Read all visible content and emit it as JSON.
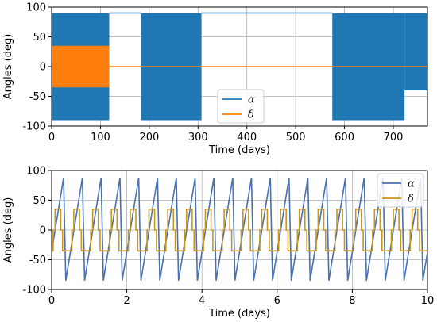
{
  "chart_data": [
    {
      "type": "line",
      "xlabel": "Time (days)",
      "ylabel": "Angles (deg)",
      "xlim": [
        0,
        770
      ],
      "ylim": [
        -100,
        100
      ],
      "xticks": [
        0,
        100,
        200,
        300,
        400,
        500,
        600,
        700
      ],
      "yticks": [
        -100,
        -50,
        0,
        50,
        100
      ],
      "grid": true,
      "legend": "lower center",
      "series": [
        {
          "name": "α",
          "color": "#1f77b4",
          "oscillation_bands": [
            {
              "x_start": 0,
              "x_end": 118,
              "min": -90,
              "max": 90
            },
            {
              "x_start": 183,
              "x_end": 307,
              "min": -90,
              "max": 90
            },
            {
              "x_start": 575,
              "x_end": 723,
              "min": -90,
              "max": 90
            },
            {
              "x_start": 723,
              "x_end": 770,
              "min": -40,
              "max": 90
            }
          ],
          "steady_segments": [
            {
              "x_start": 118,
              "x_end": 183,
              "value": 90
            },
            {
              "x_start": 307,
              "x_end": 575,
              "value": 90
            }
          ]
        },
        {
          "name": "δ",
          "color": "#ff7f0e",
          "oscillation_bands": [
            {
              "x_start": 0,
              "x_end": 118,
              "min": -35,
              "max": 35
            }
          ],
          "steady_segments": [
            {
              "x_start": 118,
              "x_end": 770,
              "value": 0
            }
          ]
        }
      ]
    },
    {
      "type": "line",
      "xlabel": "Time (days)",
      "ylabel": "Angles (deg)",
      "xlim": [
        0,
        10
      ],
      "ylim": [
        -100,
        100
      ],
      "xticks": [
        0,
        2,
        4,
        6,
        8,
        10
      ],
      "yticks": [
        -100,
        -50,
        0,
        50,
        100
      ],
      "grid": true,
      "legend": "upper right",
      "series": [
        {
          "name": "α",
          "color": "#4a72b0",
          "waveform": "sawtooth",
          "period_days": 0.5,
          "min": -85,
          "max": 88
        },
        {
          "name": "δ",
          "color": "#c8961e",
          "waveform": "square",
          "period_days": 0.5,
          "min": -35,
          "max": 35,
          "duty": 0.6
        }
      ]
    }
  ]
}
